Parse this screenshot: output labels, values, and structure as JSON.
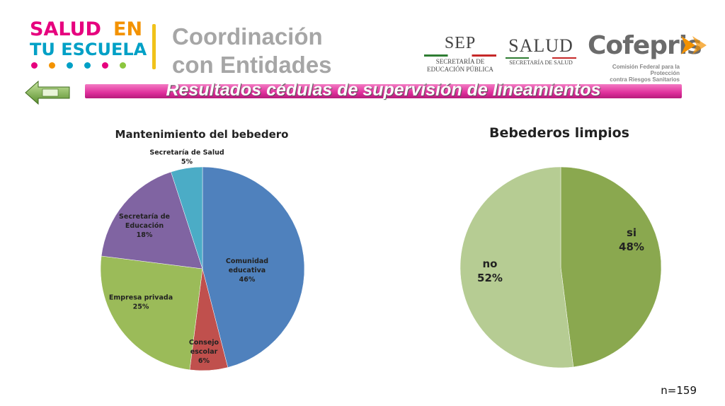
{
  "header": {
    "program_logo": {
      "line1_a": "SALUD",
      "line1_b": "EN",
      "line2": "TU ESCUELA"
    },
    "title": "Coordinación con Entidades",
    "logos": {
      "sep": {
        "name": "SEP",
        "sub1": "SECRETARÍA DE",
        "sub2": "EDUCACIÓN PÚBLICA"
      },
      "salud": {
        "name": "SALUD",
        "sub": "SECRETARÍA DE SALUD"
      },
      "cofepris": {
        "name": "Cofepris",
        "sub1": "Comisión Federal para la Protección",
        "sub2": "contra Riesgos Sanitarios"
      }
    }
  },
  "banner": {
    "text": "Resultados  cédulas de supervisión de lineamientos"
  },
  "footer": {
    "n_label": "n=159"
  },
  "colors": {
    "banner": "#e02f9c",
    "dots": [
      "#e6007e",
      "#f39200",
      "#00a0c6",
      "#00a0c6",
      "#e6007e",
      "#8cc63f"
    ]
  },
  "chart_data": [
    {
      "type": "pie",
      "title": "Mantenimiento del bebedero",
      "slices": [
        {
          "label": [
            "Comunidad",
            "educativa"
          ],
          "value": 46,
          "pct": "46%",
          "color": "#4f81bd"
        },
        {
          "label": [
            "Consejo",
            "escolar"
          ],
          "value": 6,
          "pct": "6%",
          "color": "#c0504d"
        },
        {
          "label": [
            "Empresa privada"
          ],
          "value": 25,
          "pct": "25%",
          "color": "#9bbb59"
        },
        {
          "label": [
            "Secretaría de",
            "Educación"
          ],
          "value": 18,
          "pct": "18%",
          "color": "#8064a2"
        },
        {
          "label": [
            "Secretaría de Salud"
          ],
          "value": 5,
          "pct": "5%",
          "color": "#4bacc6"
        }
      ]
    },
    {
      "type": "pie",
      "title": "Bebederos limpios",
      "slices": [
        {
          "label": [
            "si"
          ],
          "value": 48,
          "pct": "48%",
          "color": "#8aa84f"
        },
        {
          "label": [
            "no"
          ],
          "value": 52,
          "pct": "52%",
          "color": "#b6cc93"
        }
      ]
    }
  ]
}
